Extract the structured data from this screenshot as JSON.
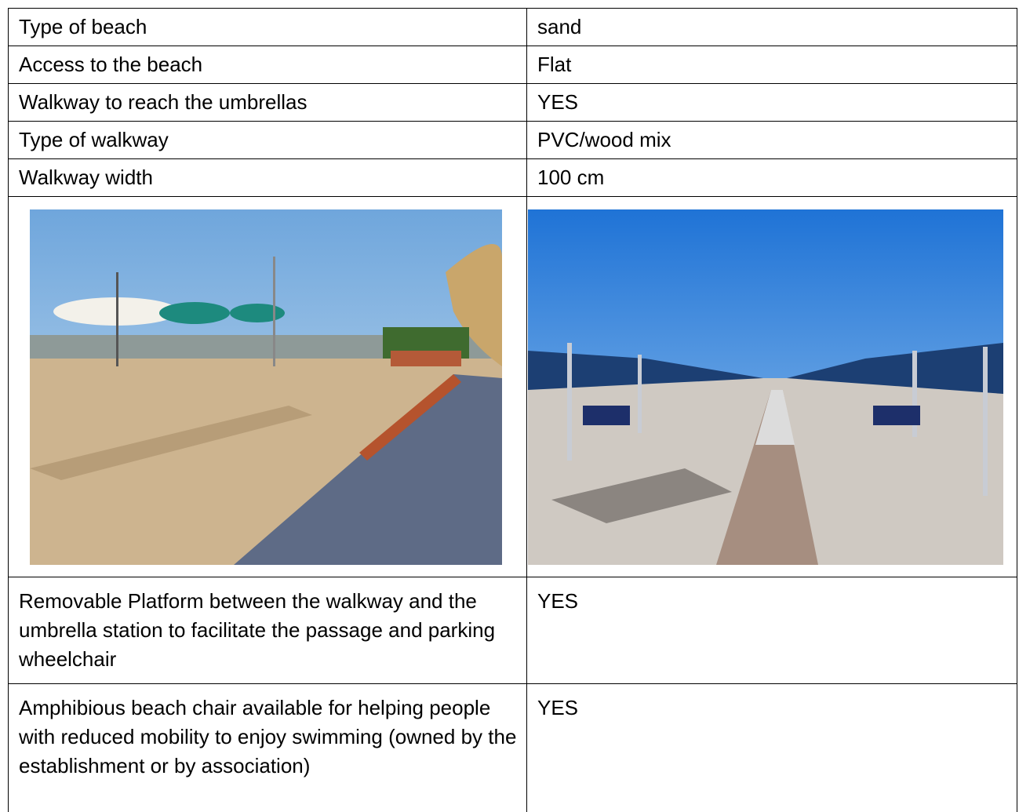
{
  "table": {
    "rows": [
      [
        "Type of beach",
        "sand"
      ],
      [
        "Access to the beach",
        "Flat"
      ],
      [
        "Walkway to reach the umbrellas",
        "YES"
      ],
      [
        "Type of walkway",
        "PVC/wood mix"
      ],
      [
        "Walkway width",
        "100 cm"
      ],
      [
        "Removable Platform between the walkway and the umbrella station to facilitate the passage and parking wheelchair",
        "YES"
      ],
      [
        "Amphibious beach chair available for helping people with reduced mobility to enjoy swimming (owned by the establishment or by association)",
        "YES"
      ]
    ]
  }
}
